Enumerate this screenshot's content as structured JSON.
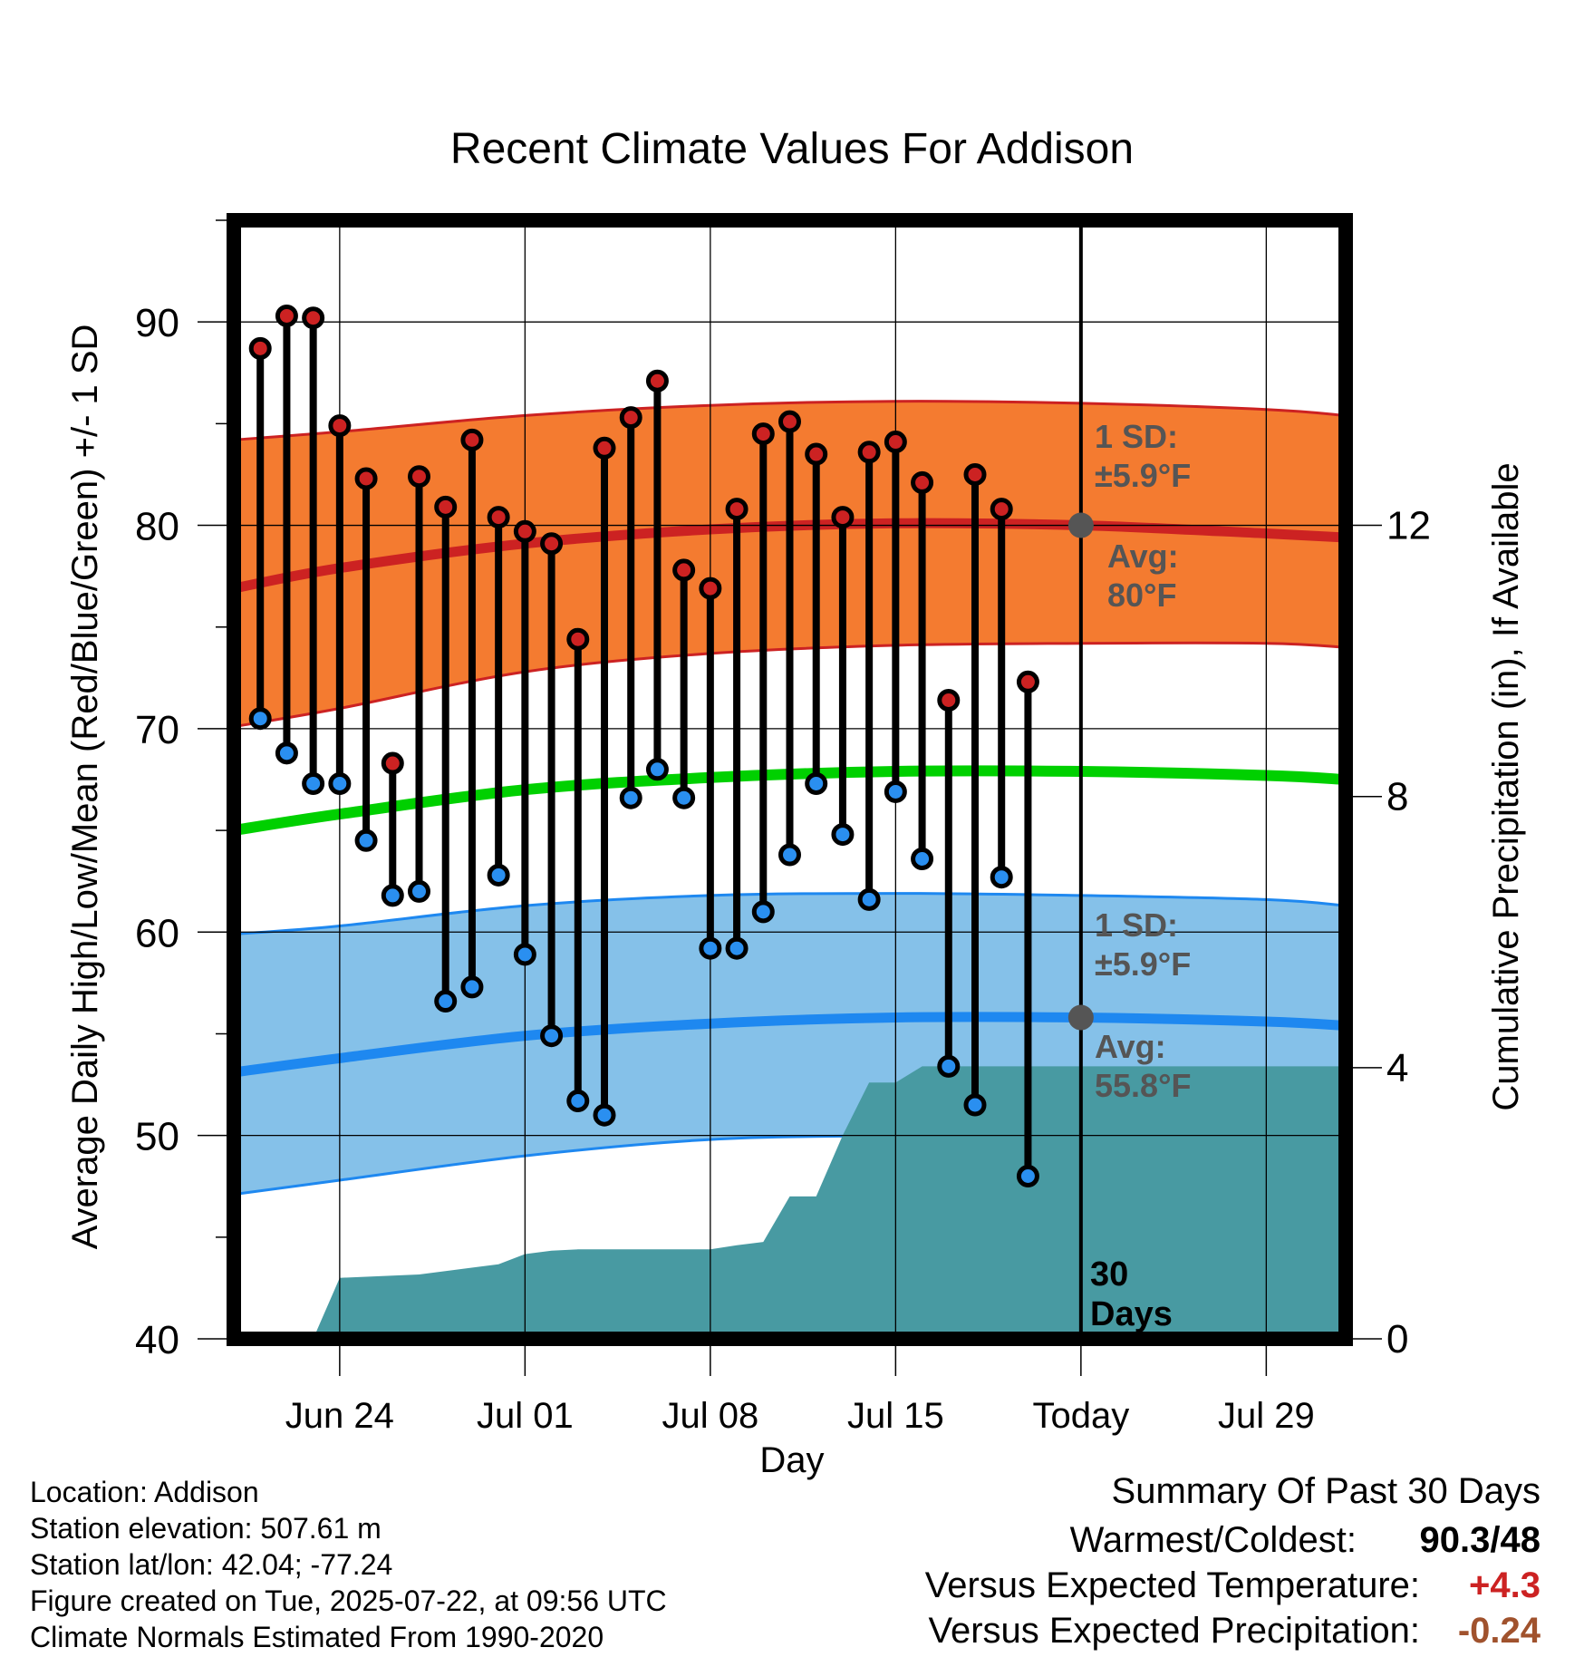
{
  "chart_data": {
    "type": "line",
    "title": "Recent Climate Values For Addison",
    "xlabel": "Day",
    "ylabel": "Average Daily High/Low/Mean (Red/Blue/Green) +/- 1 SD",
    "y2label": "Cumulative Precipitation (in), If Available",
    "ylim": [
      40,
      95
    ],
    "y2lim": [
      0,
      16.5
    ],
    "xlim": [
      "2025-06-20",
      "2025-08-01"
    ],
    "yticks": [
      40,
      50,
      60,
      70,
      80,
      90
    ],
    "y2ticks": [
      0,
      4,
      8,
      12
    ],
    "xticks": [
      {
        "date": "2025-06-24",
        "label": "Jun 24"
      },
      {
        "date": "2025-07-01",
        "label": "Jul 01"
      },
      {
        "date": "2025-07-08",
        "label": "Jul 08"
      },
      {
        "date": "2025-07-15",
        "label": "Jul 15"
      },
      {
        "date": "2025-07-22",
        "label": "Today"
      },
      {
        "date": "2025-07-29",
        "label": "Jul 29"
      }
    ],
    "today": "2025-07-22",
    "period_label": "30 Days",
    "colors": {
      "high_band": "#f47b30",
      "high_mean": "#cc2222",
      "low_band": "#85c1e9",
      "low_mean": "#1e88f0",
      "mean_line": "#00d000",
      "precip": "#489aa2",
      "high_dot": "#cc2222",
      "low_dot": "#2a8ff0",
      "annotation": "#555555",
      "warm_value": "#cc2222",
      "precip_value": "#a0522d"
    },
    "normals": {
      "dates": [
        "2025-06-20",
        "2025-06-24",
        "2025-07-01",
        "2025-07-08",
        "2025-07-15",
        "2025-07-22",
        "2025-07-29",
        "2025-08-01"
      ],
      "high_mean": [
        76.9,
        77.9,
        79.1,
        79.8,
        80.1,
        80.0,
        79.6,
        79.4
      ],
      "high_upper": [
        84.2,
        84.6,
        85.4,
        85.9,
        86.1,
        86.0,
        85.7,
        85.4
      ],
      "high_lower": [
        70.1,
        71.0,
        72.8,
        73.7,
        74.1,
        74.2,
        74.2,
        74.0
      ],
      "mean": [
        65.0,
        65.8,
        67.0,
        67.6,
        67.9,
        67.9,
        67.7,
        67.5
      ],
      "low_mean": [
        53.1,
        53.8,
        54.9,
        55.5,
        55.8,
        55.8,
        55.6,
        55.4
      ],
      "low_upper": [
        59.9,
        60.3,
        61.3,
        61.8,
        61.9,
        61.8,
        61.6,
        61.3
      ],
      "low_lower": [
        47.1,
        47.8,
        49.0,
        49.8,
        50.0,
        50.1,
        50.1,
        50.0
      ]
    },
    "daily": {
      "dates": [
        "2025-06-21",
        "2025-06-22",
        "2025-06-23",
        "2025-06-24",
        "2025-06-25",
        "2025-06-26",
        "2025-06-27",
        "2025-06-28",
        "2025-06-29",
        "2025-06-30",
        "2025-07-01",
        "2025-07-02",
        "2025-07-03",
        "2025-07-04",
        "2025-07-05",
        "2025-07-06",
        "2025-07-07",
        "2025-07-08",
        "2025-07-09",
        "2025-07-10",
        "2025-07-11",
        "2025-07-12",
        "2025-07-13",
        "2025-07-14",
        "2025-07-15",
        "2025-07-16",
        "2025-07-17",
        "2025-07-18",
        "2025-07-19",
        "2025-07-20",
        "2025-07-21"
      ],
      "high": [
        88.7,
        90.3,
        90.2,
        84.9,
        82.3,
        68.3,
        82.4,
        80.9,
        84.2,
        80.4,
        79.7,
        79.1,
        74.4,
        83.8,
        85.3,
        87.1,
        77.8,
        76.9,
        80.8,
        84.5,
        85.1,
        83.5,
        80.4,
        83.6,
        84.1,
        82.1,
        71.4,
        82.5,
        80.8,
        72.3,
        null
      ],
      "low": [
        70.5,
        68.8,
        67.3,
        67.3,
        64.5,
        61.8,
        62.0,
        56.6,
        57.3,
        62.8,
        58.9,
        54.9,
        51.7,
        51.0,
        66.6,
        68.0,
        66.6,
        59.2,
        59.2,
        61.0,
        63.8,
        67.3,
        64.8,
        61.6,
        66.9,
        63.6,
        53.4,
        51.5,
        62.7,
        48.0,
        null
      ]
    },
    "precip_cumulative": {
      "dates": [
        "2025-06-20",
        "2025-06-23",
        "2025-06-24",
        "2025-06-27",
        "2025-06-30",
        "2025-07-01",
        "2025-07-02",
        "2025-07-03",
        "2025-07-07",
        "2025-07-08",
        "2025-07-09",
        "2025-07-10",
        "2025-07-11",
        "2025-07-12",
        "2025-07-13",
        "2025-07-14",
        "2025-07-15",
        "2025-07-16",
        "2025-07-22",
        "2025-08-01"
      ],
      "values": [
        0.0,
        0.0,
        0.9,
        0.95,
        1.1,
        1.25,
        1.3,
        1.32,
        1.32,
        1.32,
        1.38,
        1.43,
        2.1,
        2.1,
        3.0,
        3.78,
        3.78,
        4.02,
        4.02,
        4.02
      ]
    },
    "annotations": {
      "high_sd": [
        "1 SD:",
        "±5.9°F"
      ],
      "high_avg": [
        "Avg:",
        "80°F"
      ],
      "low_sd": [
        "1 SD:",
        "±5.9°F"
      ],
      "low_avg": [
        "Avg:",
        "55.8°F"
      ]
    },
    "grid": true
  },
  "station": {
    "location": "Location: Addison",
    "elevation": "Station elevation: 507.61 m",
    "latlon": "Station lat/lon: 42.04; -77.24",
    "created": "Figure created on Tue, 2025-07-22, at 09:56 UTC",
    "normals": "Climate Normals Estimated From 1990-2020"
  },
  "summary": {
    "title": "Summary Of Past 30 Days",
    "warm_cold_label": "Warmest/Coldest:",
    "warm_value": "90.3",
    "cold_value": "/48",
    "temp_label": "Versus Expected Temperature:",
    "temp_value": "+4.3",
    "precip_label": "Versus Expected Precipitation:",
    "precip_value": "-0.24"
  }
}
